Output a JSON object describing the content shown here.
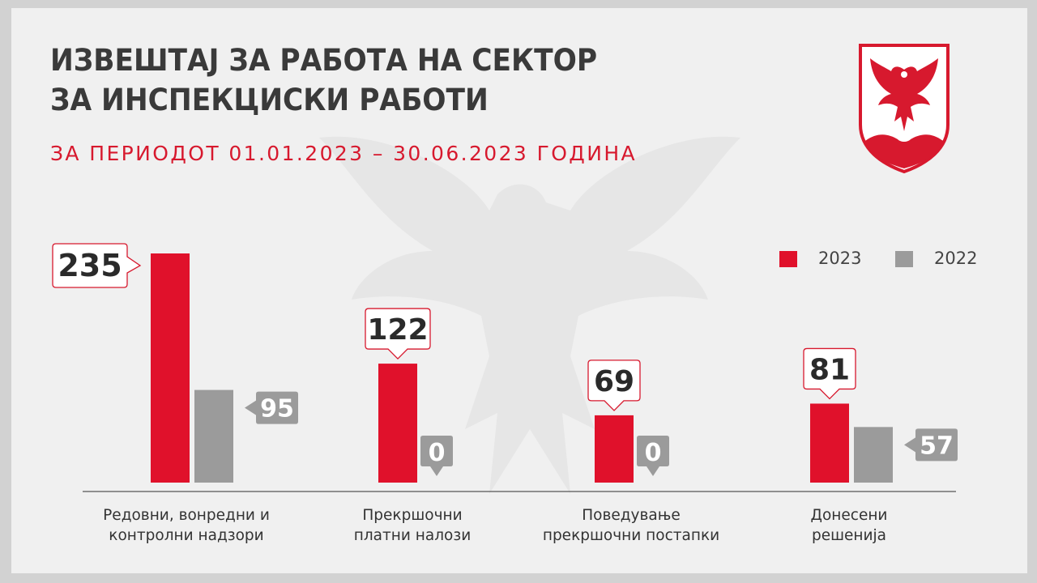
{
  "header": {
    "title_line1": "ИЗВЕШТАЈ ЗА РАБОТА НА СЕКТОР",
    "title_line2": "ЗА ИНСПЕКЦИСКИ РАБОТИ",
    "subtitle": "ЗА ПЕРИОДОТ 01.01.2023 – 30.06.2023 ГОДИНА"
  },
  "colors": {
    "accent": "#d7192e",
    "series_2023": "#e0112b",
    "series_2022": "#9b9b9b",
    "background": "#f0f0f0",
    "title": "#3a3a3a"
  },
  "icons": [
    "eagle-crest-icon",
    "eagle-watermark-icon"
  ],
  "chart_data": {
    "type": "bar",
    "categories": [
      [
        "Редовни, вонредни и",
        "контролни надзори"
      ],
      [
        "Прекршочни",
        "платни налози"
      ],
      [
        "Поведување",
        "прекршочни постапки"
      ],
      [
        "Донесени",
        "решенија"
      ]
    ],
    "series": [
      {
        "name": "2023",
        "values": [
          235,
          122,
          69,
          81
        ]
      },
      {
        "name": "2022",
        "values": [
          95,
          0,
          0,
          57
        ]
      }
    ],
    "legend": "top-right",
    "grid": false,
    "ylim": [
      0,
      235
    ]
  }
}
